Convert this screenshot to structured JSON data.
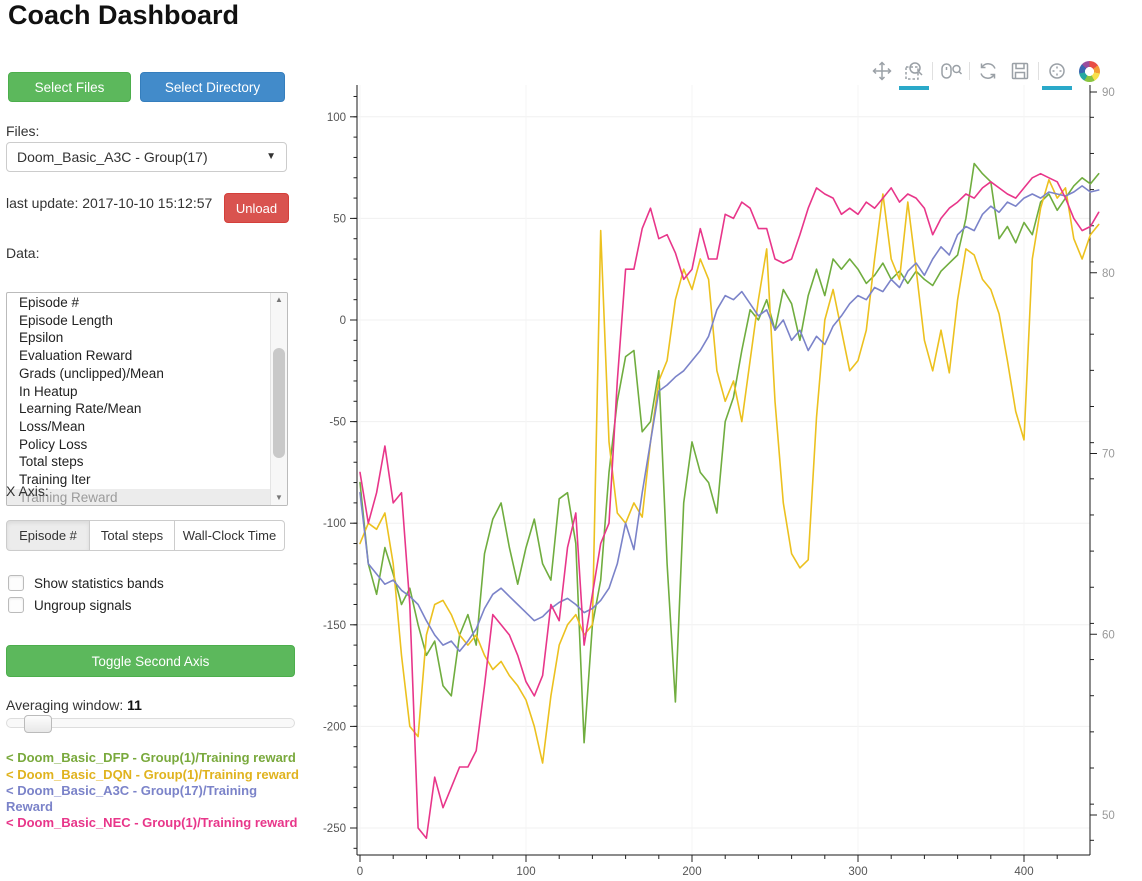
{
  "page": {
    "title": "Coach Dashboard"
  },
  "sidebar": {
    "select_files_label": "Select Files",
    "select_directory_label": "Select Directory",
    "files_label": "Files:",
    "files_selected": "Doom_Basic_A3C - Group(17)",
    "last_update": "last update: 2017-10-10 15:12:57",
    "unload_label": "Unload",
    "data_label": "Data:",
    "data_items": [
      "Episode #",
      "Episode Length",
      "Epsilon",
      "Evaluation Reward",
      "Grads (unclipped)/Mean",
      "In Heatup",
      "Learning Rate/Mean",
      "Loss/Mean",
      "Policy Loss",
      "Total steps",
      "Training Iter",
      "Training Reward"
    ],
    "data_selected": "Training Reward",
    "xaxis_label": "X Axis:",
    "xaxis_tabs": [
      "Episode #",
      "Total steps",
      "Wall-Clock Time"
    ],
    "xaxis_active": "Episode #",
    "checkbox_bands_label": "Show statistics bands",
    "checkbox_ungroup_label": "Ungroup signals",
    "toggle_second_axis_label": "Toggle Second Axis",
    "averaging_label": "Averaging window: ",
    "averaging_value": "11",
    "legend": [
      {
        "text": "< Doom_Basic_DFP - Group(1)/Training reward",
        "color": "#79a93c"
      },
      {
        "text": "< Doom_Basic_DQN - Group(1)/Training reward",
        "color": "#e0b31e"
      },
      {
        "text": "< Doom_Basic_A3C - Group(17)/Training Reward",
        "color": "#7b83c9"
      },
      {
        "text": "< Doom_Basic_NEC - Group(1)/Training reward",
        "color": "#e8368a"
      }
    ]
  },
  "toolbar": {
    "tools": [
      {
        "name": "pan-tool-icon",
        "active": false
      },
      {
        "name": "box-zoom-tool-icon",
        "active": true
      },
      {
        "name": "sep",
        "active": false
      },
      {
        "name": "wheel-zoom-tool-icon",
        "active": false
      },
      {
        "name": "sep",
        "active": false
      },
      {
        "name": "reset-tool-icon",
        "active": false
      },
      {
        "name": "save-tool-icon",
        "active": false
      },
      {
        "name": "sep",
        "active": false
      },
      {
        "name": "hover-tool-icon",
        "active": true
      },
      {
        "name": "bokeh-logo-icon",
        "active": false
      }
    ]
  },
  "chart_data": {
    "type": "line",
    "title": "",
    "xlabel": "",
    "ylabel": "",
    "x_axis": {
      "ticks": [
        0,
        100,
        200,
        300,
        400
      ],
      "minor_step": 20,
      "range": [
        -2,
        440
      ]
    },
    "y_axis_left": {
      "ticks": [
        100,
        50,
        0,
        -50,
        -100,
        -150,
        -200,
        -250
      ],
      "minor_step": 10,
      "range": [
        -263,
        115
      ]
    },
    "y_axis_right": {
      "ticks": [
        90,
        80,
        70,
        60,
        50
      ],
      "minor_step": 2,
      "range": [
        48.4,
        90.4
      ]
    },
    "grid": true,
    "legend_position": "external-left-bottom",
    "x_step": 5,
    "series": [
      {
        "name": "Doom_Basic_DFP - Group(1)/Training reward",
        "color": "#70ad3f",
        "values": [
          -80,
          -120,
          -135,
          -112,
          -125,
          -140,
          -132,
          -150,
          -165,
          -158,
          -180,
          -185,
          -155,
          -145,
          -160,
          -115,
          -98,
          -90,
          -112,
          -130,
          -112,
          -98,
          -120,
          -128,
          -88,
          -85,
          -110,
          -208,
          -150,
          -128,
          -75,
          -40,
          -18,
          -15,
          -55,
          -50,
          -25,
          -120,
          -188,
          -90,
          -60,
          -75,
          -80,
          -95,
          -50,
          -38,
          -15,
          5,
          0,
          10,
          -5,
          15,
          8,
          -10,
          12,
          25,
          12,
          30,
          25,
          30,
          25,
          18,
          22,
          28,
          20,
          24,
          18,
          24,
          20,
          17,
          24,
          28,
          32,
          50,
          77,
          72,
          68,
          40,
          46,
          38,
          48,
          42,
          58,
          62,
          54,
          60,
          66,
          70,
          67,
          72
        ]
      },
      {
        "name": "Doom_Basic_DQN - Group(1)/Training reward",
        "color": "#ecc11f",
        "values": [
          -110,
          -100,
          -103,
          -95,
          -120,
          -165,
          -200,
          -205,
          -155,
          -140,
          -138,
          -145,
          -155,
          -160,
          -155,
          -165,
          -172,
          -168,
          -175,
          -180,
          -187,
          -200,
          -218,
          -185,
          -160,
          -150,
          -145,
          -155,
          -150,
          44,
          -60,
          -95,
          -100,
          -90,
          -97,
          -60,
          -30,
          -20,
          10,
          25,
          15,
          30,
          20,
          -25,
          -40,
          -30,
          -50,
          -20,
          10,
          35,
          -40,
          -90,
          -115,
          -122,
          -118,
          -48,
          0,
          15,
          -5,
          -25,
          -20,
          -5,
          30,
          62,
          30,
          20,
          58,
          25,
          -10,
          -25,
          -5,
          -26,
          10,
          35,
          32,
          20,
          15,
          3,
          -20,
          -45,
          -59,
          30,
          55,
          69,
          60,
          65,
          40,
          30,
          42,
          47
        ]
      },
      {
        "name": "Doom_Basic_A3C - Group(17)/Training Reward",
        "color": "#7b83c9",
        "values": [
          -85,
          -120,
          -125,
          -130,
          -128,
          -133,
          -136,
          -140,
          -148,
          -155,
          -160,
          -158,
          -163,
          -158,
          -152,
          -142,
          -135,
          -132,
          -136,
          -140,
          -144,
          -148,
          -146,
          -142,
          -139,
          -137,
          -140,
          -144,
          -142,
          -138,
          -132,
          -120,
          -100,
          -113,
          -85,
          -60,
          -35,
          -32,
          -28,
          -25,
          -20,
          -15,
          -8,
          5,
          12,
          10,
          14,
          8,
          2,
          5,
          -5,
          0,
          -10,
          -5,
          -15,
          -8,
          -12,
          -3,
          2,
          8,
          12,
          10,
          16,
          14,
          20,
          16,
          24,
          28,
          22,
          30,
          36,
          32,
          42,
          46,
          44,
          52,
          56,
          53,
          58,
          56,
          60,
          62,
          60,
          63,
          62,
          61,
          63,
          66,
          63,
          64
        ]
      },
      {
        "name": "Doom_Basic_NEC - Group(1)/Training reward",
        "color": "#e8368a",
        "values": [
          -75,
          -100,
          -85,
          -62,
          -90,
          -85,
          -140,
          -250,
          -255,
          -225,
          -240,
          -230,
          -220,
          -220,
          -212,
          -180,
          -145,
          -150,
          -155,
          -165,
          -178,
          -185,
          -175,
          -140,
          -148,
          -112,
          -95,
          -160,
          -135,
          -110,
          -100,
          -30,
          25,
          25,
          45,
          55,
          40,
          42,
          33,
          20,
          25,
          45,
          30,
          30,
          52,
          50,
          58,
          55,
          45,
          45,
          30,
          28,
          30,
          42,
          55,
          65,
          62,
          60,
          52,
          55,
          52,
          58,
          55,
          60,
          65,
          58,
          62,
          60,
          55,
          42,
          50,
          55,
          58,
          62,
          60,
          65,
          68,
          65,
          62,
          60,
          65,
          70,
          72,
          70,
          68,
          60,
          50,
          44,
          46,
          53
        ]
      }
    ]
  }
}
